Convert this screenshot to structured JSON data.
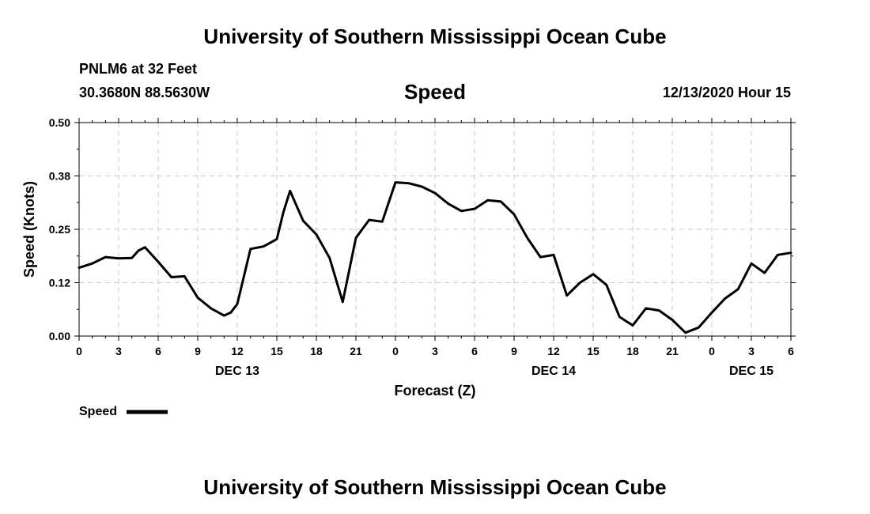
{
  "header": {
    "title": "University of Southern Mississippi Ocean Cube",
    "station": "PNLM6 at 32 Feet",
    "coords": "30.3680N 88.5630W",
    "plot_title": "Speed",
    "timestamp": "12/13/2020 Hour 15"
  },
  "footer": {
    "title": "University of Southern Mississippi Ocean Cube"
  },
  "chart_data": {
    "type": "line",
    "title": "Speed",
    "xlabel": "Forecast (Z)",
    "ylabel": "Speed (Knots)",
    "ylim": [
      0,
      0.5
    ],
    "xlim": [
      0,
      54
    ],
    "y_ticks": [
      "0.00",
      "0.12",
      "0.25",
      "0.38",
      "0.50"
    ],
    "y_tick_values": [
      0,
      0.125,
      0.25,
      0.375,
      0.5
    ],
    "x_tick_labels": [
      "0",
      "3",
      "6",
      "9",
      "12",
      "15",
      "18",
      "21",
      "0",
      "3",
      "6",
      "9",
      "12",
      "15",
      "18",
      "21",
      "0",
      "3",
      "6"
    ],
    "day_labels": [
      {
        "hour": 12,
        "label": "DEC 13"
      },
      {
        "hour": 36,
        "label": "DEC 14"
      },
      {
        "hour": 51,
        "label": "DEC 15"
      }
    ],
    "grid": true,
    "legend_position": "bottom-left",
    "series": [
      {
        "name": "Speed",
        "color": "#000000",
        "x": [
          0,
          1,
          2,
          3,
          4,
          4.5,
          5,
          6,
          7,
          8,
          9,
          10,
          11,
          11.5,
          12,
          13,
          14,
          15,
          15.5,
          16,
          17,
          18,
          19,
          20,
          21,
          22,
          23,
          24,
          25,
          26,
          27,
          28,
          29,
          30,
          31,
          32,
          33,
          34,
          35,
          36,
          37,
          38,
          39,
          40,
          41,
          42,
          43,
          44,
          45,
          46,
          47,
          48,
          49,
          50,
          51,
          52,
          53,
          54
        ],
        "values": [
          0.16,
          0.17,
          0.185,
          0.182,
          0.183,
          0.2,
          0.208,
          0.174,
          0.138,
          0.14,
          0.09,
          0.065,
          0.048,
          0.055,
          0.075,
          0.204,
          0.21,
          0.227,
          0.29,
          0.34,
          0.27,
          0.238,
          0.183,
          0.08,
          0.23,
          0.272,
          0.268,
          0.36,
          0.358,
          0.35,
          0.335,
          0.31,
          0.293,
          0.298,
          0.318,
          0.315,
          0.285,
          0.23,
          0.185,
          0.19,
          0.095,
          0.125,
          0.145,
          0.12,
          0.045,
          0.025,
          0.065,
          0.06,
          0.038,
          0.008,
          0.02,
          0.055,
          0.088,
          0.11,
          0.17,
          0.148,
          0.19,
          0.195
        ]
      }
    ]
  }
}
